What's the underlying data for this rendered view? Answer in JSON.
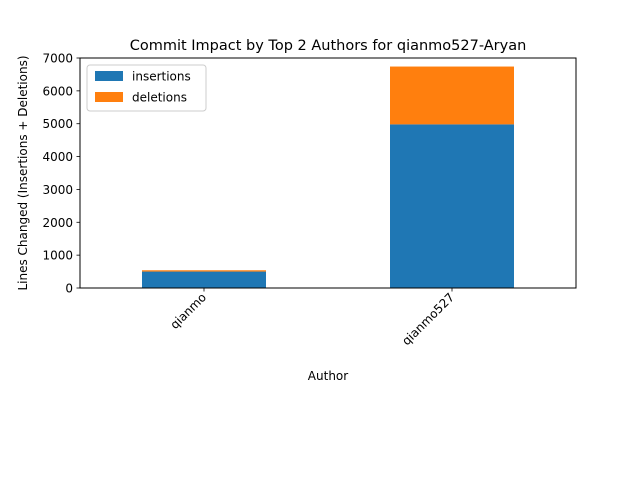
{
  "chart_data": {
    "type": "bar",
    "stacked": true,
    "title": "Commit Impact by Top 2 Authors for qianmo527-Aryan",
    "xlabel": "Author",
    "ylabel": "Lines Changed (Insertions + Deletions)",
    "categories": [
      "qianmo",
      "qianmo527"
    ],
    "series": [
      {
        "name": "insertions",
        "color": "#1f77b4",
        "values": [
          500,
          4980
        ]
      },
      {
        "name": "deletions",
        "color": "#ff7f0e",
        "values": [
          40,
          1760
        ]
      }
    ],
    "ylim": [
      0,
      7000
    ],
    "yticks": [
      0,
      1000,
      2000,
      3000,
      4000,
      5000,
      6000,
      7000
    ],
    "grid": false,
    "legend_position": "top-left"
  }
}
